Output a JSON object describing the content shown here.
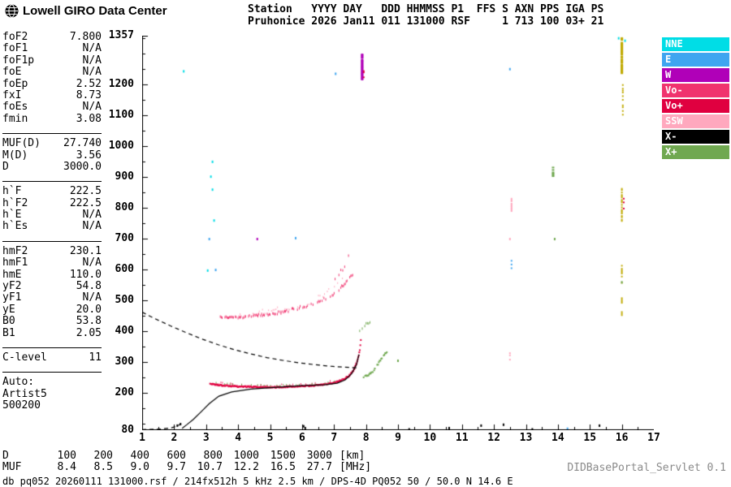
{
  "header": {
    "logo_text": "Lowell GIRO Data Center",
    "station_block": "Station   YYYY DAY   DDD HHMMSS P1  FFS S AXN PPS IGA PS\nPruhonice 2026 Jan11 011 131000 RSF     1 713 100 03+ 21"
  },
  "parameters": {
    "groups": [
      {
        "rows": [
          [
            "foF2",
            "7.800"
          ],
          [
            "foF1",
            "N/A"
          ],
          [
            "foF1p",
            "N/A"
          ],
          [
            "foE",
            "N/A"
          ],
          [
            "foEp",
            "2.52"
          ],
          [
            "fxI",
            "8.73"
          ],
          [
            "foEs",
            "N/A"
          ],
          [
            "fmin",
            "3.08"
          ]
        ]
      },
      {
        "rows": [
          [
            "MUF(D)",
            "27.740"
          ],
          [
            "M(D)",
            "3.56"
          ],
          [
            "D",
            "3000.0"
          ]
        ]
      },
      {
        "rows": [
          [
            "h`F",
            "222.5"
          ],
          [
            "h`F2",
            "222.5"
          ],
          [
            "h`E",
            "N/A"
          ],
          [
            "h`Es",
            "N/A"
          ]
        ]
      },
      {
        "rows": [
          [
            "hmF2",
            "230.1"
          ],
          [
            "hmF1",
            "N/A"
          ],
          [
            "hmE",
            "110.0"
          ],
          [
            "yF2",
            "54.8"
          ],
          [
            "yF1",
            "N/A"
          ],
          [
            "yE",
            "20.0"
          ],
          [
            "B0",
            "53.8"
          ],
          [
            "B1",
            "2.05"
          ]
        ]
      },
      {
        "rows": [
          [
            "C-level",
            "11"
          ]
        ]
      },
      {
        "rows": [
          [
            "Auto:",
            ""
          ],
          [
            "Artist5",
            ""
          ],
          [
            "500200",
            ""
          ]
        ]
      }
    ]
  },
  "legend": {
    "items": [
      {
        "label": "NNE",
        "color": "#00DDE6"
      },
      {
        "label": "E",
        "color": "#3FA5F0"
      },
      {
        "label": "W",
        "color": "#B000B8"
      },
      {
        "label": "Vo-",
        "color": "#F0336E"
      },
      {
        "label": "Vo+",
        "color": "#E00040"
      },
      {
        "label": "SSW",
        "color": "#FFA8BE"
      },
      {
        "label": "X-",
        "color": "#000000"
      },
      {
        "label": "X+",
        "color": "#70A850"
      }
    ]
  },
  "muf_table": {
    "rows": [
      {
        "label": "D",
        "values": [
          "100",
          "200",
          "400",
          "600",
          "800",
          "1000",
          "1500",
          "3000"
        ],
        "unit": "[km]"
      },
      {
        "label": "MUF",
        "values": [
          "8.4",
          "8.5",
          "9.0",
          "9.7",
          "10.7",
          "12.2",
          "16.5",
          "27.7"
        ],
        "unit": "[MHz]"
      }
    ]
  },
  "footer": {
    "status": "db pq052 20260111 131000.rsf / 214fx512h 5 kHz 2.5 km / DPS-4D PQ052 50 / 50.0 N 14.6 E",
    "servlet": "DIDBasePortal_Servlet 0.1"
  },
  "chart_data": {
    "type": "scatter",
    "title": "Pruhonice ionogram 2026 Jan11 011 131000",
    "xlabel": "[MHz]",
    "ylabel": "[km]",
    "xlim": [
      1,
      17
    ],
    "ylim": [
      80,
      1357
    ],
    "x_ticks": [
      1,
      2,
      3,
      4,
      5,
      6,
      7,
      8,
      9,
      10,
      11,
      12,
      13,
      14,
      15,
      16,
      17
    ],
    "y_ticks": [
      80,
      200,
      300,
      400,
      500,
      600,
      700,
      800,
      900,
      1000,
      1100,
      1200,
      1357
    ],
    "grid": false,
    "legend_position": "right",
    "colors": {
      "NNE": "#00DDE6",
      "E": "#3FA5F0",
      "W": "#B000B8",
      "Vo-": "#F0336E",
      "Vo+": "#E00040",
      "SSW": "#FFA8BE",
      "X-": "#000000",
      "X+": "#70A850",
      "RFI": "#C0AA00",
      "black": "#000000"
    },
    "traces": [
      {
        "name": "F-trace-O-mode",
        "color": "Vo+",
        "spread": 4,
        "size": [
          2,
          2
        ],
        "step": 0.02,
        "skip": 0,
        "points": [
          [
            3.1,
            233
          ],
          [
            3.5,
            227
          ],
          [
            4.0,
            224
          ],
          [
            4.6,
            222
          ],
          [
            5.2,
            222
          ],
          [
            5.8,
            224
          ],
          [
            6.3,
            227
          ],
          [
            6.7,
            231
          ],
          [
            7.0,
            237
          ],
          [
            7.25,
            246
          ],
          [
            7.45,
            259
          ],
          [
            7.6,
            278
          ],
          [
            7.7,
            305
          ],
          [
            7.78,
            340
          ],
          [
            7.83,
            390
          ]
        ]
      },
      {
        "name": "F-trace-O-fringe",
        "color": "Vo-",
        "spread": 10,
        "size": [
          1,
          2
        ],
        "step": 0.05,
        "skip": 0.55,
        "points": [
          [
            3.2,
            236
          ],
          [
            4.0,
            228
          ],
          [
            5.0,
            226
          ],
          [
            6.0,
            228
          ],
          [
            6.6,
            234
          ],
          [
            7.0,
            241
          ],
          [
            7.3,
            252
          ],
          [
            7.55,
            270
          ],
          [
            7.7,
            310
          ],
          [
            7.8,
            370
          ]
        ]
      },
      {
        "name": "X-trace-low",
        "color": "X+",
        "spread": 4,
        "size": [
          1,
          2
        ],
        "step": 0.1,
        "skip": 0.5,
        "points": [
          [
            3.3,
            236
          ],
          [
            4.0,
            229
          ],
          [
            5.0,
            227
          ],
          [
            6.0,
            229
          ],
          [
            6.6,
            234
          ],
          [
            7.1,
            241
          ]
        ]
      },
      {
        "name": "X-trace-rise",
        "color": "X+",
        "spread": 6,
        "size": [
          2,
          2
        ],
        "step": 0.025,
        "skip": 0.1,
        "points": [
          [
            7.9,
            253
          ],
          [
            8.1,
            265
          ],
          [
            8.25,
            280
          ],
          [
            8.35,
            296
          ],
          [
            8.45,
            315
          ],
          [
            8.55,
            330
          ],
          [
            8.65,
            338
          ]
        ]
      },
      {
        "name": "second-hop",
        "color": "Vo-",
        "spread": 9,
        "size": [
          1,
          3
        ],
        "step": 0.03,
        "skip": 0.25,
        "points": [
          [
            3.4,
            452
          ],
          [
            3.9,
            450
          ],
          [
            4.4,
            453
          ],
          [
            4.9,
            458
          ],
          [
            5.3,
            465
          ],
          [
            5.7,
            474
          ],
          [
            6.1,
            486
          ],
          [
            6.5,
            500
          ],
          [
            6.9,
            520
          ],
          [
            7.2,
            545
          ],
          [
            7.45,
            572
          ],
          [
            7.6,
            595
          ]
        ]
      },
      {
        "name": "second-hop-pink",
        "color": "SSW",
        "spread": 18,
        "size": [
          1,
          2
        ],
        "step": 0.05,
        "skip": 0.5,
        "points": [
          [
            4.0,
            458
          ],
          [
            4.8,
            465
          ],
          [
            5.5,
            478
          ],
          [
            6.1,
            495
          ],
          [
            6.6,
            515
          ],
          [
            7.0,
            545
          ],
          [
            7.3,
            585
          ],
          [
            7.55,
            625
          ]
        ]
      },
      {
        "name": "second-hop-tail",
        "color": "Vo-",
        "spread": 28,
        "size": [
          1,
          3
        ],
        "step": 0.06,
        "skip": 0.5,
        "points": [
          [
            6.9,
            570
          ],
          [
            7.2,
            605
          ],
          [
            7.5,
            645
          ]
        ]
      },
      {
        "name": "green-top-cluster",
        "color": "X+",
        "spread": 14,
        "size": [
          1,
          3
        ],
        "step": 0.05,
        "skip": 0.45,
        "points": [
          [
            7.75,
            405
          ],
          [
            7.95,
            425
          ],
          [
            8.15,
            440
          ]
        ]
      }
    ],
    "strips": [
      {
        "color": "W",
        "f": 7.88,
        "from": 1215,
        "to": 1300,
        "w": 3,
        "step": 3,
        "skip": 0.1
      },
      {
        "color": "Vo+",
        "f": 7.93,
        "from": 1225,
        "to": 1248,
        "w": 2,
        "step": 4,
        "skip": 0.3
      },
      {
        "color": "RFI",
        "f": 16.0,
        "from": 1238,
        "to": 1352,
        "w": 3,
        "step": 3,
        "skip": 0.12
      },
      {
        "color": "RFI",
        "f": 16.03,
        "from": 1080,
        "to": 1235,
        "w": 2,
        "step": 6,
        "skip": 0.6
      },
      {
        "color": "RFI",
        "f": 16.0,
        "from": 760,
        "to": 870,
        "w": 2,
        "step": 4,
        "skip": 0.35
      },
      {
        "color": "Vo+",
        "f": 16.06,
        "from": 800,
        "to": 832,
        "w": 2,
        "step": 4,
        "skip": 0.4
      },
      {
        "color": "RFI",
        "f": 16.0,
        "from": 450,
        "to": 615,
        "w": 2,
        "step": 5,
        "skip": 0.5
      },
      {
        "color": "SSW",
        "f": 12.55,
        "from": 788,
        "to": 836,
        "w": 2,
        "step": 4,
        "skip": 0.25
      },
      {
        "color": "E",
        "f": 12.55,
        "from": 595,
        "to": 635,
        "w": 2,
        "step": 6,
        "skip": 0.5
      },
      {
        "color": "SSW",
        "f": 12.5,
        "from": 290,
        "to": 345,
        "w": 2,
        "step": 7,
        "skip": 0.5
      },
      {
        "color": "X+",
        "f": 13.85,
        "from": 905,
        "to": 935,
        "w": 3,
        "step": 4,
        "skip": 0.25
      }
    ],
    "dots": [
      [
        2.3,
        1243,
        "NNE"
      ],
      [
        3.2,
        950,
        "NNE"
      ],
      [
        3.15,
        902,
        "NNE"
      ],
      [
        3.2,
        860,
        "NNE"
      ],
      [
        3.25,
        760,
        "NNE"
      ],
      [
        3.1,
        700,
        "E"
      ],
      [
        3.05,
        598,
        "NNE"
      ],
      [
        3.3,
        600,
        "E"
      ],
      [
        4.6,
        700,
        "W"
      ],
      [
        5.8,
        703,
        "E"
      ],
      [
        7.05,
        1235,
        "E"
      ],
      [
        12.5,
        1250,
        "E"
      ],
      [
        15.9,
        1350,
        "NNE"
      ],
      [
        16.1,
        1342,
        "NNE"
      ],
      [
        9.0,
        306,
        "X+"
      ],
      [
        13.9,
        700,
        "X+"
      ],
      [
        16.0,
        560,
        "X+"
      ],
      [
        12.5,
        700,
        "SSW"
      ],
      [
        6.05,
        94,
        "black"
      ],
      [
        6.1,
        88,
        "black"
      ],
      [
        9.35,
        84,
        "black"
      ],
      [
        10.6,
        88,
        "black"
      ],
      [
        11.6,
        96,
        "black"
      ],
      [
        12.3,
        99,
        "black"
      ],
      [
        13.2,
        84,
        "black"
      ],
      [
        14.3,
        86,
        "E"
      ],
      [
        15.3,
        96,
        "black"
      ],
      [
        2.1,
        96,
        "black"
      ],
      [
        2.2,
        101,
        "black"
      ]
    ],
    "curves": [
      {
        "name": "true-height-profile",
        "style": "solid",
        "points": [
          [
            2.25,
            86
          ],
          [
            2.4,
            98
          ],
          [
            2.6,
            115
          ],
          [
            2.85,
            140
          ],
          [
            3.1,
            166
          ],
          [
            3.4,
            190
          ],
          [
            3.8,
            204
          ],
          [
            4.4,
            213
          ],
          [
            5.2,
            219
          ],
          [
            6.0,
            224
          ],
          [
            6.7,
            227
          ],
          [
            7.1,
            232
          ],
          [
            7.35,
            243
          ],
          [
            7.55,
            263
          ],
          [
            7.7,
            292
          ],
          [
            7.78,
            325
          ]
        ]
      },
      {
        "name": "muf3000-transmission-curve",
        "style": "dashed",
        "points": [
          [
            1.0,
            462
          ],
          [
            1.4,
            441
          ],
          [
            1.9,
            417
          ],
          [
            2.4,
            395
          ],
          [
            2.9,
            374
          ],
          [
            3.4,
            356
          ],
          [
            3.9,
            340
          ],
          [
            4.4,
            327
          ],
          [
            4.9,
            315
          ],
          [
            5.4,
            306
          ],
          [
            5.9,
            298
          ],
          [
            6.4,
            292
          ],
          [
            6.9,
            287
          ],
          [
            7.3,
            284
          ],
          [
            7.7,
            282
          ]
        ]
      },
      {
        "name": "profile-extrapolation",
        "style": "dashed",
        "points": [
          [
            1.0,
            82
          ],
          [
            1.5,
            83
          ],
          [
            1.9,
            87
          ],
          [
            2.05,
            92
          ],
          [
            2.2,
            99
          ]
        ]
      }
    ]
  }
}
